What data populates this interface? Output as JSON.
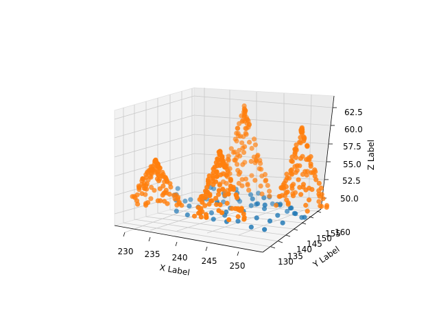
{
  "chart_data": {
    "type": "scatter3d",
    "title": "",
    "xlabel": "X Label",
    "ylabel": "Y Label",
    "zlabel": "Z Label",
    "xlim": [
      228,
      253
    ],
    "ylim": [
      127,
      162
    ],
    "zlim": [
      48,
      64.5
    ],
    "xticks": [
      "230",
      "235",
      "240",
      "245",
      "250"
    ],
    "yticks": [
      "130",
      "135",
      "140",
      "145",
      "150",
      "155",
      "160"
    ],
    "zticks": [
      "50.0",
      "52.5",
      "55.0",
      "57.5",
      "60.0",
      "62.5"
    ],
    "grid": true,
    "colors": {
      "series_a": "#1f77b4",
      "series_b": "#ff7f0e"
    },
    "series": [
      {
        "marker": "o",
        "color": "#1f77b4",
        "points": [
          [
            232,
            150,
            50.2
          ],
          [
            234,
            152,
            50.4
          ],
          [
            236,
            154,
            50.1
          ],
          [
            238,
            156,
            50.3
          ],
          [
            240,
            158,
            50.0
          ],
          [
            242,
            160,
            50.2
          ],
          [
            244,
            158,
            50.5
          ],
          [
            246,
            156,
            50.1
          ],
          [
            248,
            154,
            50.3
          ],
          [
            250,
            152,
            50.2
          ],
          [
            233,
            145,
            50.6
          ],
          [
            236,
            143,
            50.4
          ],
          [
            239,
            141,
            50.2
          ],
          [
            242,
            139,
            50.5
          ],
          [
            245,
            137,
            50.3
          ],
          [
            248,
            135,
            50.1
          ],
          [
            251,
            133,
            50.4
          ],
          [
            235,
            148,
            51.0
          ],
          [
            238,
            146,
            51.2
          ],
          [
            241,
            144,
            50.9
          ],
          [
            244,
            142,
            51.1
          ],
          [
            247,
            140,
            50.8
          ],
          [
            250,
            138,
            51.0
          ],
          [
            237,
            152,
            51.3
          ],
          [
            240,
            150,
            51.5
          ],
          [
            243,
            148,
            51.2
          ],
          [
            246,
            146,
            51.4
          ],
          [
            249,
            144,
            51.1
          ],
          [
            234,
            155,
            51.6
          ],
          [
            237,
            157,
            51.8
          ],
          [
            240,
            159,
            51.5
          ],
          [
            243,
            156,
            51.7
          ],
          [
            246,
            153,
            51.4
          ],
          [
            249,
            150,
            51.6
          ],
          [
            231,
            147,
            51.9
          ],
          [
            239,
            136,
            50.6
          ],
          [
            242,
            134,
            50.4
          ],
          [
            245,
            132,
            50.7
          ],
          [
            236,
            139,
            50.9
          ],
          [
            233,
            141,
            51.1
          ],
          [
            241,
            153,
            52.0
          ],
          [
            244,
            151,
            52.2
          ],
          [
            247,
            149,
            51.9
          ],
          [
            238,
            149,
            52.1
          ],
          [
            235,
            151,
            52.3
          ],
          [
            250,
            147,
            52.0
          ],
          [
            252,
            144,
            51.8
          ],
          [
            232,
            143,
            51.5
          ],
          [
            243,
            137,
            51.3
          ],
          [
            240,
            141,
            51.7
          ],
          [
            246,
            143,
            52.4
          ],
          [
            237,
            144,
            52.6
          ],
          [
            241,
            147,
            52.8
          ],
          [
            244,
            146,
            52.5
          ],
          [
            248,
            141,
            52.7
          ],
          [
            235,
            136,
            50.3
          ],
          [
            238,
            133,
            50.5
          ],
          [
            251,
            141,
            50.6
          ],
          [
            252,
            148,
            50.9
          ],
          [
            230,
            149,
            50.7
          ]
        ]
      },
      {
        "marker": "o",
        "color": "#ff7f0e",
        "peaks": [
          {
            "x": 233,
            "y": 132,
            "z": 57.8
          },
          {
            "x": 238,
            "y": 158,
            "z": 63.6
          },
          {
            "x": 245,
            "y": 129,
            "z": 61.0
          },
          {
            "x": 250,
            "y": 152,
            "z": 63.0
          }
        ]
      }
    ]
  }
}
